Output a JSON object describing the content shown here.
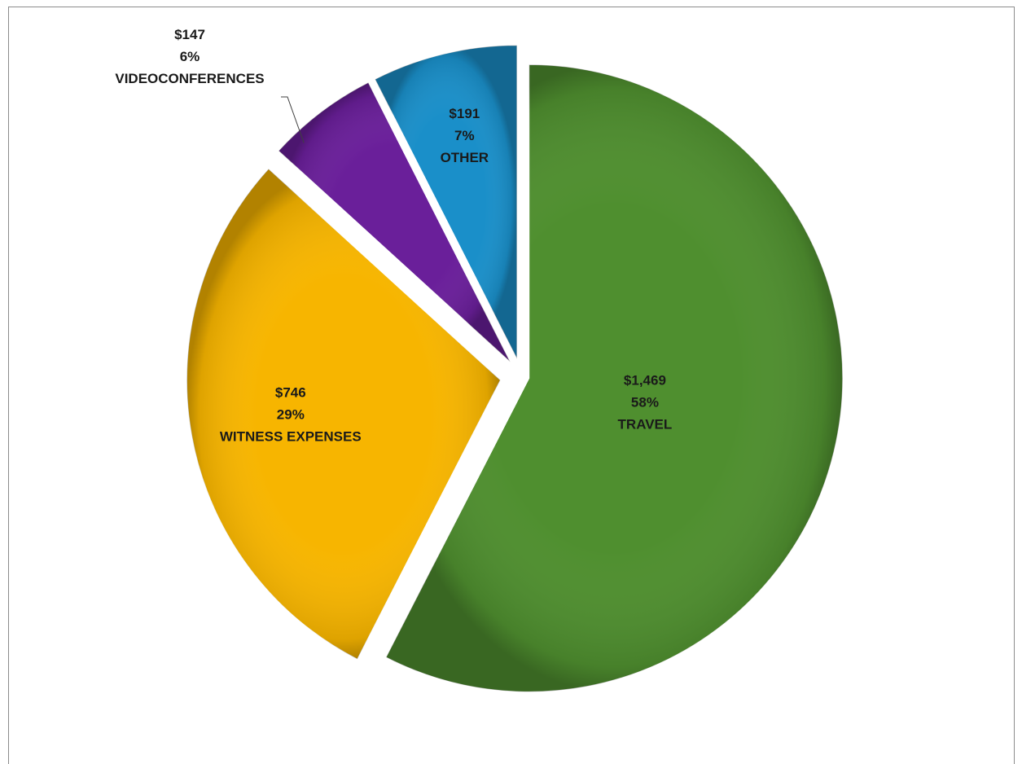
{
  "chart_data": {
    "type": "pie",
    "title": "",
    "slices": [
      {
        "name": "TRAVEL",
        "value": 1469,
        "value_label": "$1,469",
        "percent_label": "58%",
        "color": "#4f8f2f"
      },
      {
        "name": "WITNESS EXPENSES",
        "value": 746,
        "value_label": "$746",
        "percent_label": "29%",
        "color": "#f7b500"
      },
      {
        "name": "VIDEOCONFERENCES",
        "value": 147,
        "value_label": "$147",
        "percent_label": "6%",
        "color": "#6a1f9a"
      },
      {
        "name": "OTHER",
        "value": 191,
        "value_label": "$191",
        "percent_label": "7%",
        "color": "#1a8fc9"
      }
    ],
    "legend": "none",
    "exploded": true
  }
}
